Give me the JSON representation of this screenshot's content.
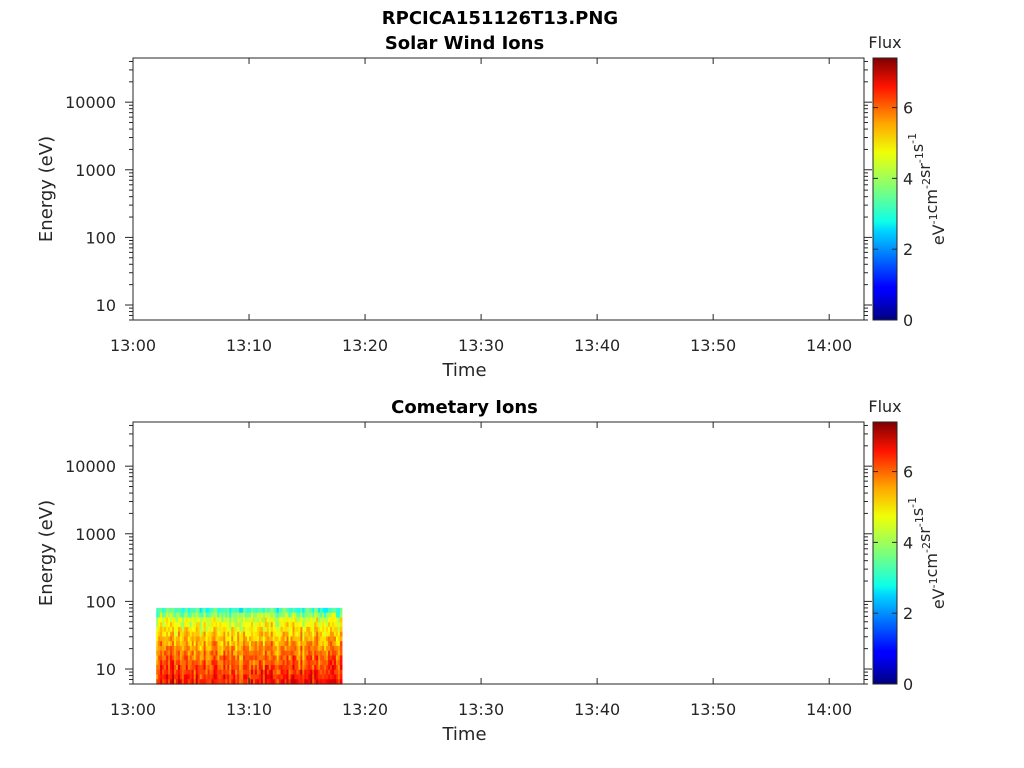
{
  "figure_title": "RPCICA151126T13.PNG",
  "chart_data": [
    {
      "type": "heatmap",
      "title": "Solar Wind Ions",
      "xlabel": "Time",
      "ylabel": "Energy (eV)",
      "yscale": "log",
      "ylim": [
        6,
        45000
      ],
      "xlim": [
        "13:00",
        "14:03"
      ],
      "x_ticks": [
        "13:00",
        "13:10",
        "13:20",
        "13:30",
        "13:40",
        "13:50",
        "14:00"
      ],
      "y_ticks": [
        "10",
        "100",
        "1000",
        "10000"
      ],
      "data": [],
      "colorbar": {
        "label": "Flux",
        "units": "eV^-1 cm^-2 sr^-1 s^-1",
        "range": [
          0,
          7.4
        ],
        "ticks": [
          "0",
          "2",
          "4",
          "6"
        ],
        "colormap": "jet"
      }
    },
    {
      "type": "heatmap",
      "title": "Cometary Ions",
      "xlabel": "Time",
      "ylabel": "Energy (eV)",
      "yscale": "log",
      "ylim": [
        6,
        45000
      ],
      "xlim": [
        "13:00",
        "14:03"
      ],
      "x_ticks": [
        "13:00",
        "13:10",
        "13:20",
        "13:30",
        "13:40",
        "13:50",
        "14:00"
      ],
      "y_ticks": [
        "10",
        "100",
        "1000",
        "10000"
      ],
      "data": {
        "time_start": "13:02",
        "time_end": "13:18",
        "energy_min": 6,
        "energy_max": 80,
        "flux_low_energy": 6.3,
        "flux_high_energy": 3.5
      },
      "colorbar": {
        "label": "Flux",
        "units": "eV^-1 cm^-2 sr^-1 s^-1",
        "range": [
          0,
          7.4
        ],
        "ticks": [
          "0",
          "2",
          "4",
          "6"
        ],
        "colormap": "jet"
      }
    }
  ]
}
